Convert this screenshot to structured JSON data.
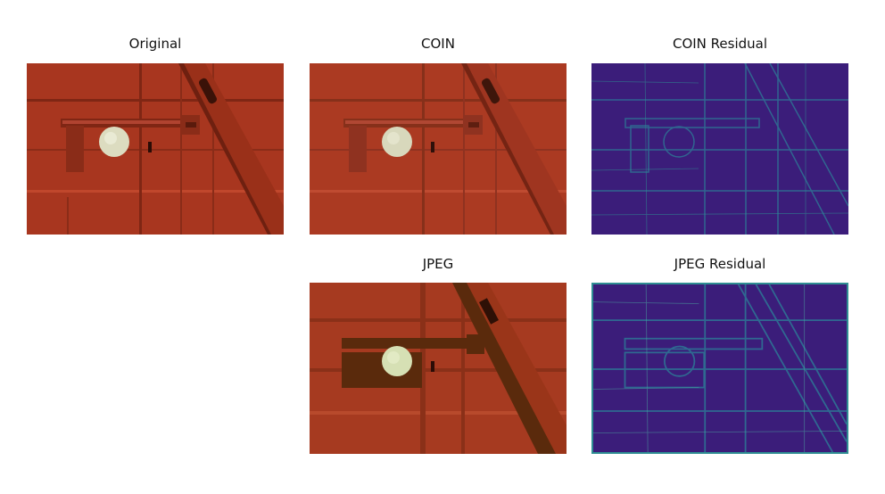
{
  "figure": {
    "panels": [
      {
        "title": "Original"
      },
      {
        "title": "COIN"
      },
      {
        "title": "COIN Residual"
      },
      {
        "title": "JPEG"
      },
      {
        "title": "JPEG Residual"
      }
    ]
  },
  "colors": {
    "door_red": "#a8361f",
    "door_red_dark": "#7f2614",
    "door_red_light": "#c0472c",
    "knob": "#dcdcc0",
    "residual_bg": "#3b1d7a",
    "residual_line": "#2f8e93",
    "residual_bright": "#7fd0a0",
    "jpeg_shadow": "#5a2a0c"
  }
}
